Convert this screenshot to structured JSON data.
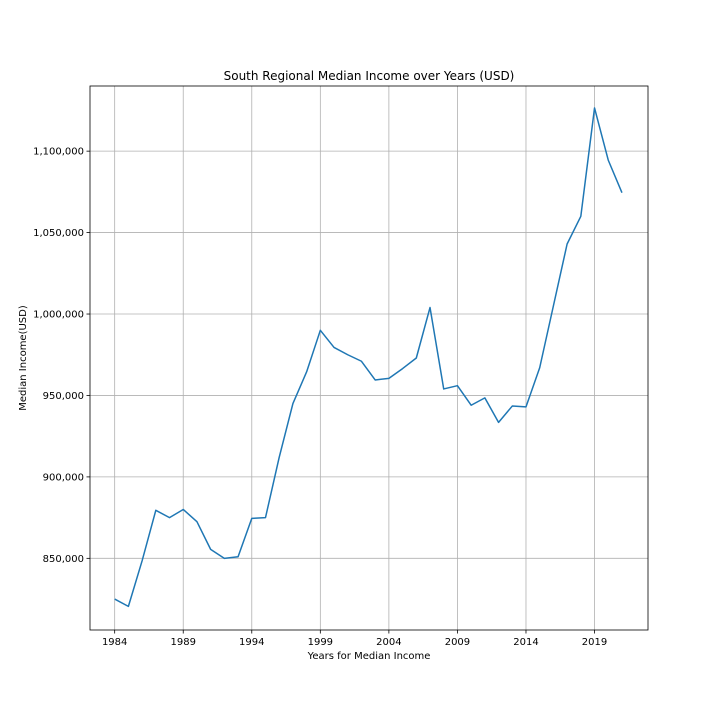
{
  "chart_data": {
    "type": "line",
    "title": "South Regional Median Income over Years (USD)",
    "xlabel": "Years for Median Income",
    "ylabel": "Median Income(USD)",
    "xlim": [
      1982.2,
      2022.9
    ],
    "ylim": [
      806000,
      1140000
    ],
    "xticks": [
      1984,
      1989,
      1994,
      1999,
      2004,
      2009,
      2014,
      2019
    ],
    "yticks": [
      850000,
      900000,
      950000,
      1000000,
      1050000,
      1100000
    ],
    "ytick_labels": [
      "850,000",
      "900,000",
      "950,000",
      "1,000,000",
      "1,050,000",
      "1,100,000"
    ],
    "grid": true,
    "line_color": "#1f77b4",
    "series": [
      {
        "x": [
          1984,
          1985,
          1986,
          1987,
          1988,
          1989,
          1990,
          1991,
          1992,
          1993,
          1994,
          1995,
          1996,
          1997,
          1998,
          1999,
          2000,
          2001,
          2002,
          2003,
          2004,
          2005,
          2006,
          2007,
          2008,
          2009,
          2010,
          2011,
          2012,
          2013,
          2014,
          2015,
          2016,
          2017,
          2018,
          2019,
          2020,
          2021
        ],
        "values": [
          825000,
          820500,
          848500,
          879500,
          875000,
          880000,
          872500,
          855500,
          850000,
          851000,
          874500,
          875000,
          912000,
          945000,
          964500,
          990000,
          979500,
          975000,
          971000,
          959500,
          960500,
          966500,
          973000,
          1004000,
          954000,
          956000,
          944000,
          948500,
          933500,
          943500,
          943000,
          967000,
          1005000,
          1043000,
          1060000,
          1126500,
          1094500,
          1074500
        ]
      }
    ]
  }
}
